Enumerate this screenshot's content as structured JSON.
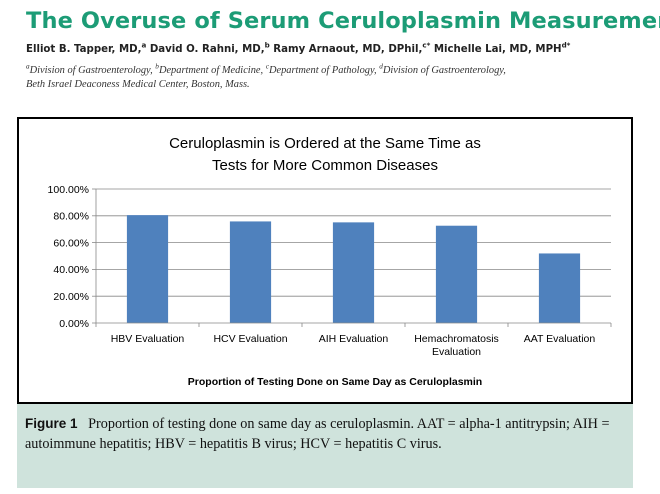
{
  "header": {
    "title": "The Overuse of Serum Ceruloplasmin Measurement",
    "authors": [
      {
        "name": "Elliot B. Tapper, MD,",
        "sup": "a"
      },
      {
        "name": "David O. Rahni, MD,",
        "sup": "b"
      },
      {
        "name": "Ramy Arnaout, MD, DPhil,",
        "sup": "c*"
      },
      {
        "name": "Michelle Lai, MD, MPH",
        "sup": "d*"
      }
    ],
    "affiliations": [
      {
        "sup": "a",
        "text": "Division of Gastroenterology,"
      },
      {
        "sup": "b",
        "text": "Department of Medicine,"
      },
      {
        "sup": "c",
        "text": "Department of Pathology,"
      },
      {
        "sup": "d",
        "text": "Division of Gastroenterology,"
      }
    ],
    "affiliation_tail": "Beth Israel Deaconess Medical Center, Boston, Mass."
  },
  "caption": {
    "label": "Figure 1",
    "text": "Proportion of testing done on same day as ceruloplasmin. AAT = alpha-1 antitrypsin; AIH = autoimmune hepatitis; HBV = hepatitis B virus; HCV = hepatitis C virus."
  },
  "chart_data": {
    "type": "bar",
    "title_lines": [
      "Ceruloplasmin is Ordered at the Same Time as",
      "Tests for More Common Diseases"
    ],
    "categories": [
      [
        "HBV Evaluation"
      ],
      [
        "HCV Evaluation"
      ],
      [
        "AIH Evaluation"
      ],
      [
        "Hemachromatosis",
        "Evaluation"
      ],
      [
        "AAT Evaluation"
      ]
    ],
    "values": [
      80.5,
      75.8,
      75.1,
      72.6,
      51.9
    ],
    "xlabel": "Proportion of Testing Done on Same Day as Ceruloplasmin",
    "ylabel": "",
    "ylim": [
      0,
      100
    ],
    "yticks": [
      "0.00%",
      "20.00%",
      "40.00%",
      "60.00%",
      "80.00%",
      "100.00%"
    ],
    "grid": true,
    "bar_color": "#4f81bd",
    "grid_color": "#888888"
  }
}
